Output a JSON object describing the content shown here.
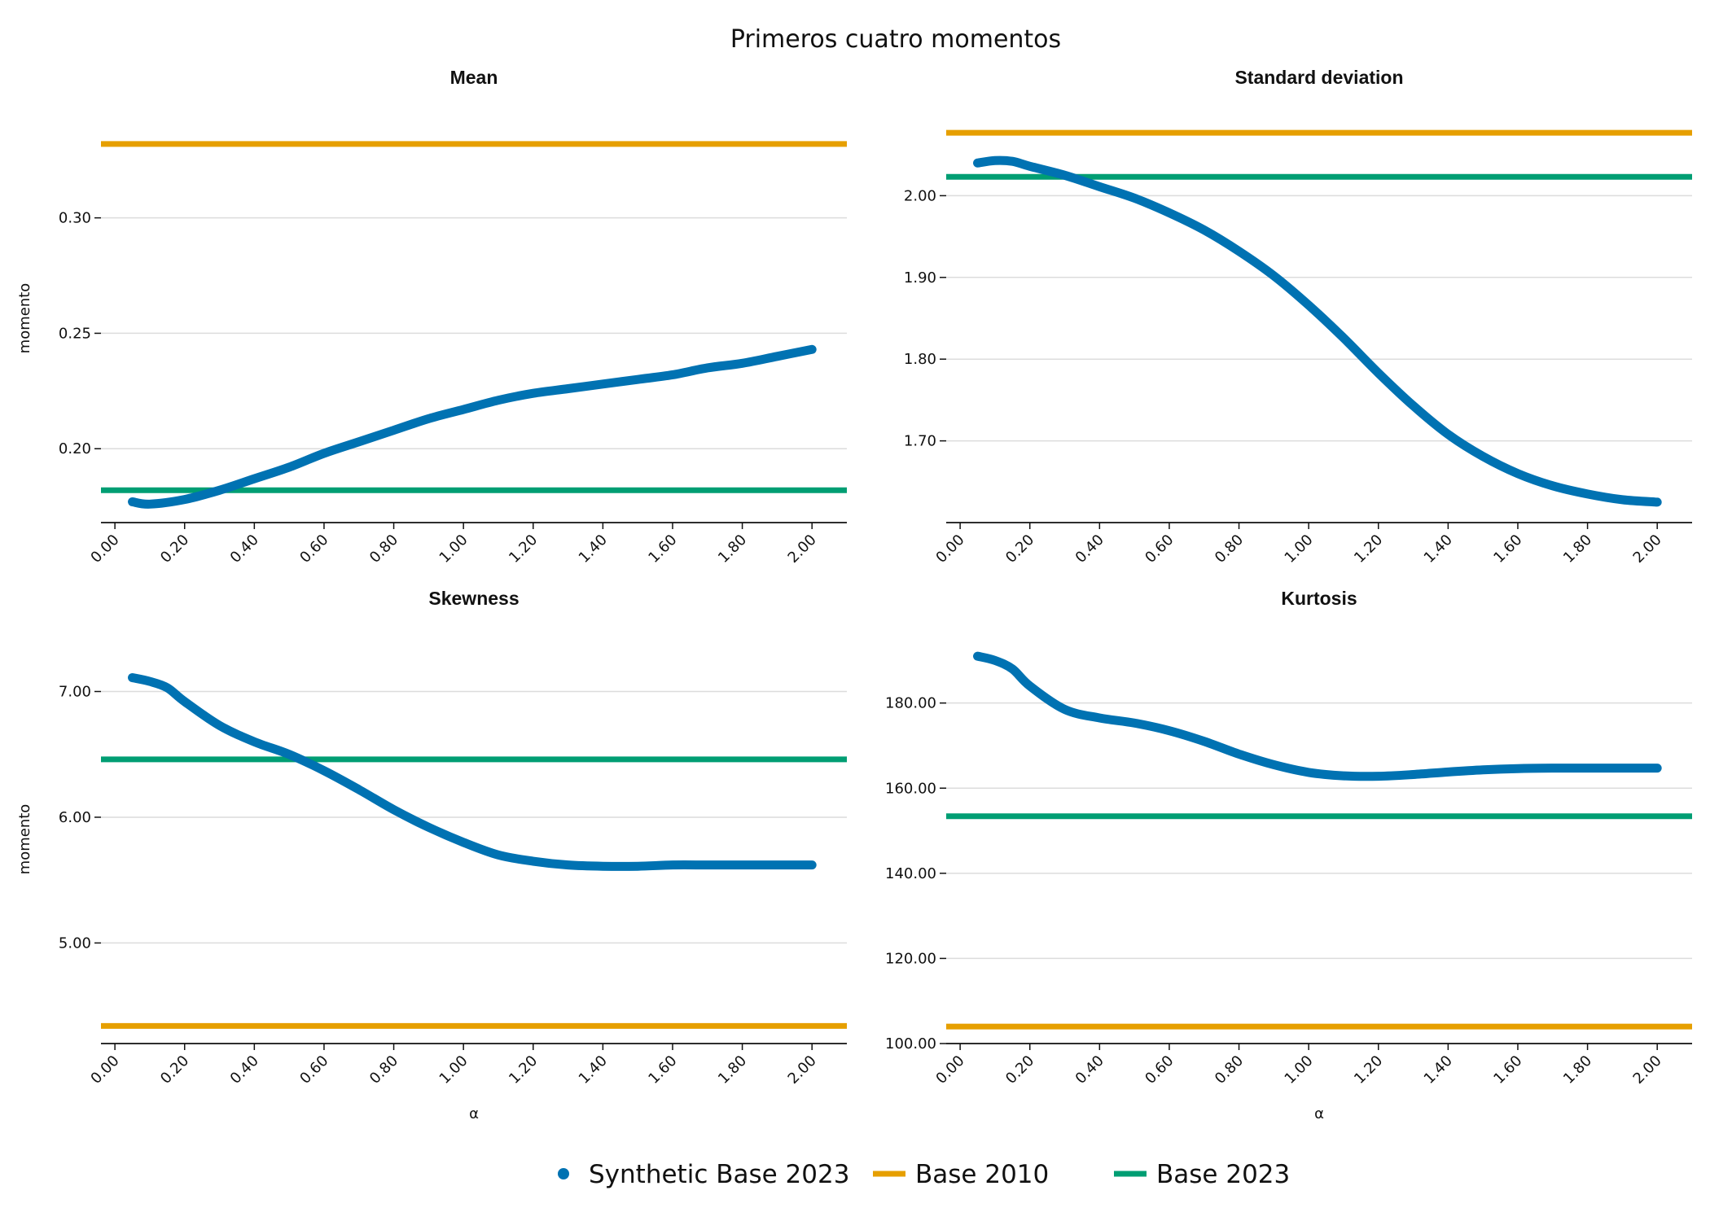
{
  "title": "Primeros cuatro momentos",
  "legend": {
    "placement": "bottom-center",
    "items": [
      {
        "label": "Synthetic Base 2023",
        "color": "#0072b2",
        "marker": "dot"
      },
      {
        "label": "Base 2010",
        "color": "#e69f00",
        "marker": "line"
      },
      {
        "label": "Base 2023",
        "color": "#009e73",
        "marker": "line"
      }
    ]
  },
  "chart_data": [
    {
      "type": "line",
      "title": "Mean",
      "xlabel": "",
      "ylabel": "momento",
      "xlim": [
        -0.04,
        2.1
      ],
      "ylim": [
        0.168,
        0.345
      ],
      "xticks": [
        "0.00",
        "0.20",
        "0.40",
        "0.60",
        "0.80",
        "1.00",
        "1.20",
        "1.40",
        "1.60",
        "1.80",
        "2.00"
      ],
      "yticks": [
        "0.20",
        "0.25",
        "0.30"
      ],
      "grid": true,
      "series": [
        {
          "name": "Synthetic Base 2023",
          "color": "#0072b2",
          "x": [
            0.05,
            0.1,
            0.2,
            0.3,
            0.4,
            0.5,
            0.6,
            0.7,
            0.8,
            0.9,
            1.0,
            1.1,
            1.2,
            1.3,
            1.4,
            1.5,
            1.6,
            1.7,
            1.8,
            1.9,
            2.0
          ],
          "y": [
            0.177,
            0.176,
            0.178,
            0.182,
            0.187,
            0.192,
            0.198,
            0.203,
            0.208,
            0.213,
            0.217,
            0.221,
            0.224,
            0.226,
            0.228,
            0.23,
            0.232,
            0.235,
            0.237,
            0.24,
            0.243
          ]
        }
      ],
      "hlines": [
        {
          "name": "Base 2010",
          "value": 0.332,
          "color": "#e69f00"
        },
        {
          "name": "Base 2023",
          "value": 0.182,
          "color": "#009e73"
        }
      ]
    },
    {
      "type": "line",
      "title": "Standard deviation",
      "xlabel": "",
      "ylabel": "",
      "xlim": [
        -0.04,
        2.1
      ],
      "ylim": [
        1.6,
        2.1
      ],
      "xticks": [
        "0.00",
        "0.20",
        "0.40",
        "0.60",
        "0.80",
        "1.00",
        "1.20",
        "1.40",
        "1.60",
        "1.80",
        "2.00"
      ],
      "yticks": [
        "1.70",
        "1.80",
        "1.90",
        "2.00"
      ],
      "grid": true,
      "series": [
        {
          "name": "Synthetic Base 2023",
          "color": "#0072b2",
          "x": [
            0.05,
            0.1,
            0.15,
            0.2,
            0.3,
            0.4,
            0.5,
            0.6,
            0.7,
            0.8,
            0.9,
            1.0,
            1.1,
            1.2,
            1.3,
            1.4,
            1.5,
            1.6,
            1.7,
            1.8,
            1.9,
            2.0
          ],
          "y": [
            2.04,
            2.043,
            2.042,
            2.036,
            2.025,
            2.011,
            1.997,
            1.979,
            1.958,
            1.932,
            1.902,
            1.866,
            1.826,
            1.783,
            1.743,
            1.708,
            1.681,
            1.66,
            1.645,
            1.635,
            1.628,
            1.625
          ]
        }
      ],
      "hlines": [
        {
          "name": "Base 2010",
          "value": 2.077,
          "color": "#e69f00"
        },
        {
          "name": "Base 2023",
          "value": 2.023,
          "color": "#009e73"
        }
      ]
    },
    {
      "type": "line",
      "title": "Skewness",
      "xlabel": "α",
      "ylabel": "momento",
      "xlim": [
        -0.04,
        2.1
      ],
      "ylim": [
        4.2,
        7.45
      ],
      "xticks": [
        "0.00",
        "0.20",
        "0.40",
        "0.60",
        "0.80",
        "1.00",
        "1.20",
        "1.40",
        "1.60",
        "1.80",
        "2.00"
      ],
      "yticks": [
        "5.00",
        "6.00",
        "7.00"
      ],
      "grid": true,
      "series": [
        {
          "name": "Synthetic Base 2023",
          "color": "#0072b2",
          "x": [
            0.05,
            0.1,
            0.15,
            0.2,
            0.3,
            0.4,
            0.5,
            0.6,
            0.7,
            0.8,
            0.9,
            1.0,
            1.1,
            1.2,
            1.3,
            1.4,
            1.5,
            1.6,
            1.7,
            1.8,
            1.9,
            2.0
          ],
          "y": [
            7.11,
            7.08,
            7.03,
            6.92,
            6.73,
            6.6,
            6.5,
            6.37,
            6.22,
            6.06,
            5.92,
            5.8,
            5.7,
            5.65,
            5.62,
            5.61,
            5.61,
            5.62,
            5.62,
            5.62,
            5.62,
            5.62
          ]
        }
      ],
      "hlines": [
        {
          "name": "Base 2010",
          "value": 4.34,
          "color": "#e69f00"
        },
        {
          "name": "Base 2023",
          "value": 6.46,
          "color": "#009e73"
        }
      ]
    },
    {
      "type": "line",
      "title": "Kurtosis",
      "xlabel": "α",
      "ylabel": "",
      "xlim": [
        -0.04,
        2.1
      ],
      "ylim": [
        100.0,
        196.0
      ],
      "xticks": [
        "0.00",
        "0.20",
        "0.40",
        "0.60",
        "0.80",
        "1.00",
        "1.20",
        "1.40",
        "1.60",
        "1.80",
        "2.00"
      ],
      "yticks": [
        "100.00",
        "120.00",
        "140.00",
        "160.00",
        "180.00"
      ],
      "grid": true,
      "series": [
        {
          "name": "Synthetic Base 2023",
          "color": "#0072b2",
          "x": [
            0.05,
            0.1,
            0.15,
            0.2,
            0.3,
            0.4,
            0.5,
            0.6,
            0.7,
            0.8,
            0.9,
            1.0,
            1.1,
            1.2,
            1.3,
            1.4,
            1.5,
            1.6,
            1.7,
            1.8,
            1.9,
            2.0
          ],
          "y": [
            191.0,
            190.0,
            188.0,
            184.0,
            178.5,
            176.5,
            175.3,
            173.5,
            171.0,
            168.0,
            165.5,
            163.7,
            162.9,
            162.8,
            163.2,
            163.8,
            164.3,
            164.6,
            164.7,
            164.7,
            164.7,
            164.7
          ]
        }
      ],
      "hlines": [
        {
          "name": "Base 2010",
          "value": 104.0,
          "color": "#e69f00"
        },
        {
          "name": "Base 2023",
          "value": 153.4,
          "color": "#009e73"
        }
      ]
    }
  ]
}
